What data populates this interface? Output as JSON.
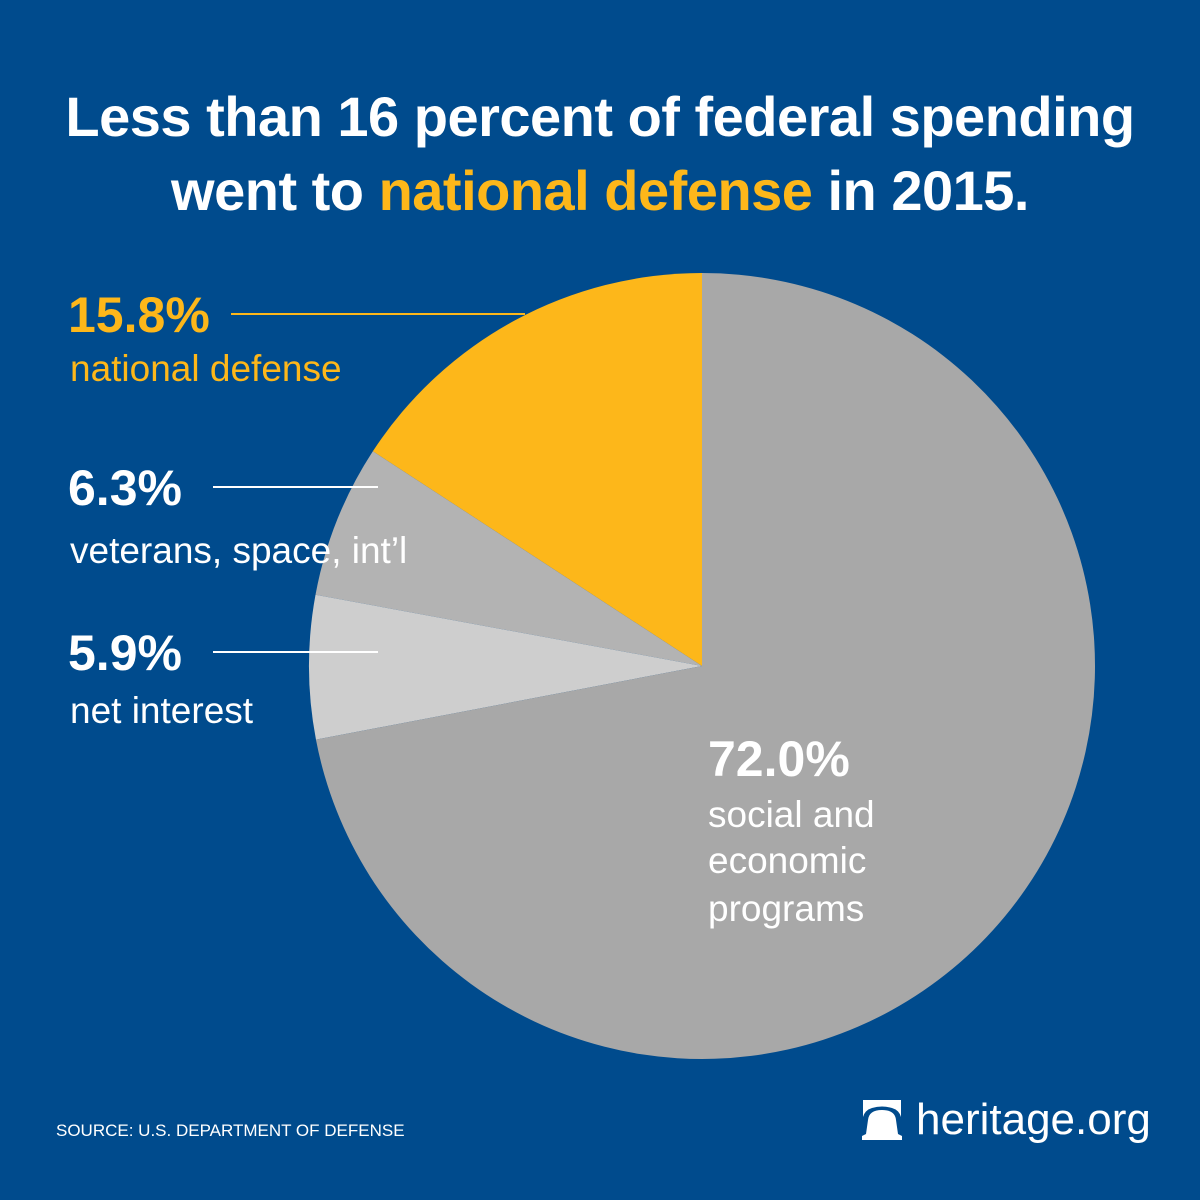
{
  "title": {
    "part1": "Less than 16 percent of federal spending",
    "part2_prefix": "went to ",
    "part2_highlight": "national defense",
    "part2_suffix": " in 2015."
  },
  "colors": {
    "background": "#004B8D",
    "accent": "#FDB71A",
    "gray_dark": "#A8A8A8",
    "gray_mid": "#B3B3B3",
    "gray_light": "#CECECE",
    "text": "#FFFFFF"
  },
  "chart_data": {
    "type": "pie",
    "title": "Less than 16 percent of federal spending went to national defense in 2015.",
    "start": "top",
    "direction": "counterclockwise",
    "slices": [
      {
        "label": "national defense",
        "value": 15.8,
        "display": "15.8%",
        "color": "#FDB71A"
      },
      {
        "label": "veterans, space, int’l",
        "value": 6.3,
        "display": "6.3%",
        "color": "#B3B3B3"
      },
      {
        "label": "net interest",
        "value": 5.9,
        "display": "5.9%",
        "color": "#CECECE"
      },
      {
        "label": "social and economic programs",
        "value": 72.0,
        "display": "72.0%",
        "color": "#A8A8A8"
      }
    ]
  },
  "labels": {
    "defense": {
      "pct": "15.8%",
      "text": "national defense"
    },
    "veterans": {
      "pct": "6.3%",
      "text": "veterans, space, int’l"
    },
    "interest": {
      "pct": "5.9%",
      "text": "net interest"
    },
    "social": {
      "pct": "72.0%",
      "line1": "social and",
      "line2": "economic",
      "line3": "programs"
    }
  },
  "footer": {
    "source": "SOURCE: U.S. DEPARTMENT OF DEFENSE",
    "logo_icon": "liberty-bell-icon",
    "logo_text": "heritage.org"
  }
}
